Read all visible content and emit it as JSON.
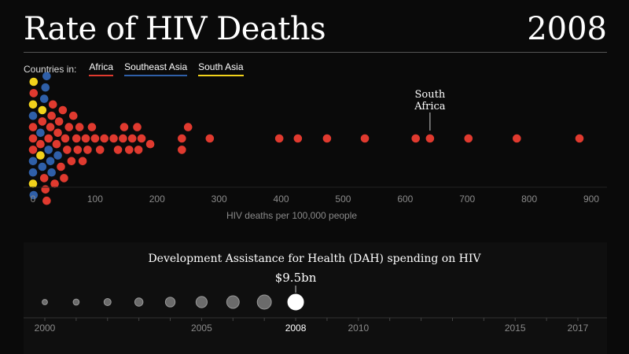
{
  "header": {
    "title": "Rate of HIV Deaths",
    "year": "2008"
  },
  "legend": {
    "label": "Countries in:",
    "items": [
      {
        "name": "Africa",
        "color": "#e03a2f"
      },
      {
        "name": "Southeast Asia",
        "color": "#2f5fa8"
      },
      {
        "name": "South Asia",
        "color": "#f2d21b"
      }
    ]
  },
  "chart_data": [
    {
      "type": "scatter",
      "subtype": "beeswarm",
      "xlabel": "HIV deaths per 100,000 people",
      "xlim": [
        0,
        900
      ],
      "xticks": [
        0,
        100,
        200,
        300,
        400,
        500,
        600,
        700,
        800,
        900
      ],
      "annotation": {
        "text": [
          "South",
          "Africa"
        ],
        "x": 640
      },
      "series": [
        {
          "name": "Africa",
          "color": "#e03a2f",
          "values": [
            881,
            780,
            702,
            640,
            617,
            535,
            474,
            427,
            397,
            285,
            250,
            240,
            240,
            189,
            175,
            170,
            168,
            160,
            155,
            147,
            145,
            137,
            130,
            115,
            108,
            100,
            95,
            88,
            85,
            80,
            75,
            72,
            70,
            65,
            62,
            58,
            55,
            52,
            50,
            48,
            45,
            42,
            40,
            38,
            35,
            32,
            30,
            28,
            25,
            22,
            20,
            18,
            15,
            12,
            10,
            8,
            5,
            3,
            2,
            1,
            0,
            0,
            0
          ]
        },
        {
          "name": "Southeast Asia",
          "color": "#2f5fa8",
          "values": [
            40,
            30,
            28,
            25,
            22,
            20,
            18,
            15,
            12,
            10,
            8,
            5,
            3,
            2,
            1,
            0,
            0,
            0
          ]
        },
        {
          "name": "South Asia",
          "color": "#f2d21b",
          "values": [
            15,
            12,
            5,
            2,
            1,
            0,
            0
          ]
        }
      ]
    },
    {
      "type": "scatter",
      "subtype": "bubble",
      "title": "Development Assistance for Health (DAH) spending on HIV",
      "highlight_label": "$9.5bn",
      "highlight_year": 2008,
      "xlim": [
        2000,
        2017
      ],
      "tick_labels": [
        2000,
        2005,
        2008,
        2010,
        2015,
        2017
      ],
      "years": [
        2000,
        2001,
        2002,
        2003,
        2004,
        2005,
        2006,
        2007,
        2008
      ],
      "values": [
        1.1,
        1.4,
        1.9,
        2.6,
        3.6,
        4.8,
        6.0,
        7.6,
        9.5
      ]
    }
  ]
}
